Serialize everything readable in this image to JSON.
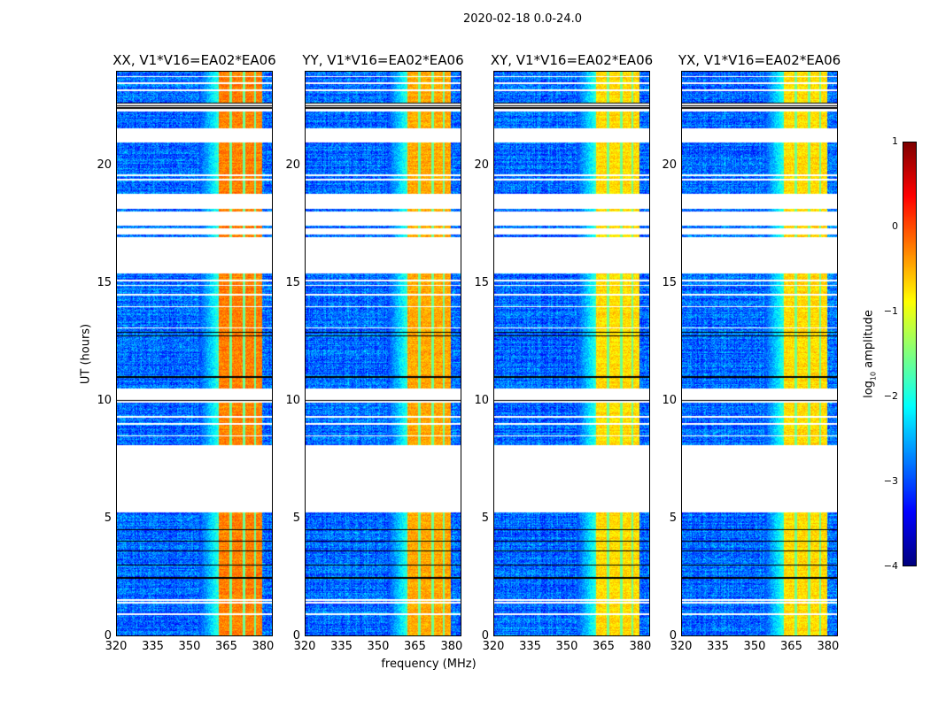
{
  "chart_data": {
    "type": "heatmap",
    "title": "2020-02-18 0.0-24.0",
    "xlabel": "frequency (MHz)",
    "ylabel": "UT (hours)",
    "xlim": [
      320,
      384
    ],
    "ylim": [
      0,
      24
    ],
    "xticks": [
      "320",
      "335",
      "350",
      "365",
      "380"
    ],
    "xtick_values": [
      320,
      335,
      350,
      365,
      380
    ],
    "yticks": [
      "0",
      "5",
      "10",
      "15",
      "20"
    ],
    "ytick_values": [
      0,
      5,
      10,
      15,
      20
    ],
    "panels": [
      {
        "title": "XX, V1*V16=EA02*EA06",
        "band_level": -0.25
      },
      {
        "title": "YY, V1*V16=EA02*EA06",
        "band_level": -0.45
      },
      {
        "title": "XY, V1*V16=EA02*EA06",
        "band_level": -0.7
      },
      {
        "title": "YX, V1*V16=EA02*EA06",
        "band_level": -0.7
      }
    ],
    "noise_level": -3.0,
    "band_range_mhz": [
      362,
      380
    ],
    "band_channel_gaps_mhz": [
      367,
      372.5,
      377
    ],
    "data_blocks_hours": [
      [
        0,
        2.4
      ],
      [
        2.5,
        5.25
      ],
      [
        8.1,
        9.9
      ],
      [
        10.5,
        15.4
      ],
      [
        16.95,
        17.05
      ],
      [
        17.35,
        17.45
      ],
      [
        18.05,
        18.15
      ],
      [
        18.8,
        21.0
      ],
      [
        21.6,
        22.3
      ],
      [
        22.7,
        24
      ]
    ],
    "flagged_rows_hours": [
      0.9,
      1.4,
      1.5,
      8.5,
      9.0,
      9.3,
      13.1,
      14.0,
      14.5,
      14.9,
      15.1,
      19.4,
      19.6,
      23.2,
      23.5,
      23.8
    ],
    "black_rows_hours": [
      2.45,
      3.0,
      3.6,
      4.0,
      4.5,
      10.0,
      11.0,
      12.75,
      12.9,
      22.45,
      22.55,
      22.65
    ],
    "colorbar": {
      "label": "log10 amplitude",
      "label_main": "log",
      "label_sub": "10",
      "label_rest": " amplitude",
      "range": [
        -4,
        1
      ],
      "ticks": [
        "1",
        "0",
        "−1",
        "−2",
        "−3",
        "−4"
      ],
      "tick_values": [
        1,
        0,
        -1,
        -2,
        -3,
        -4
      ],
      "colormap": "jet"
    }
  }
}
